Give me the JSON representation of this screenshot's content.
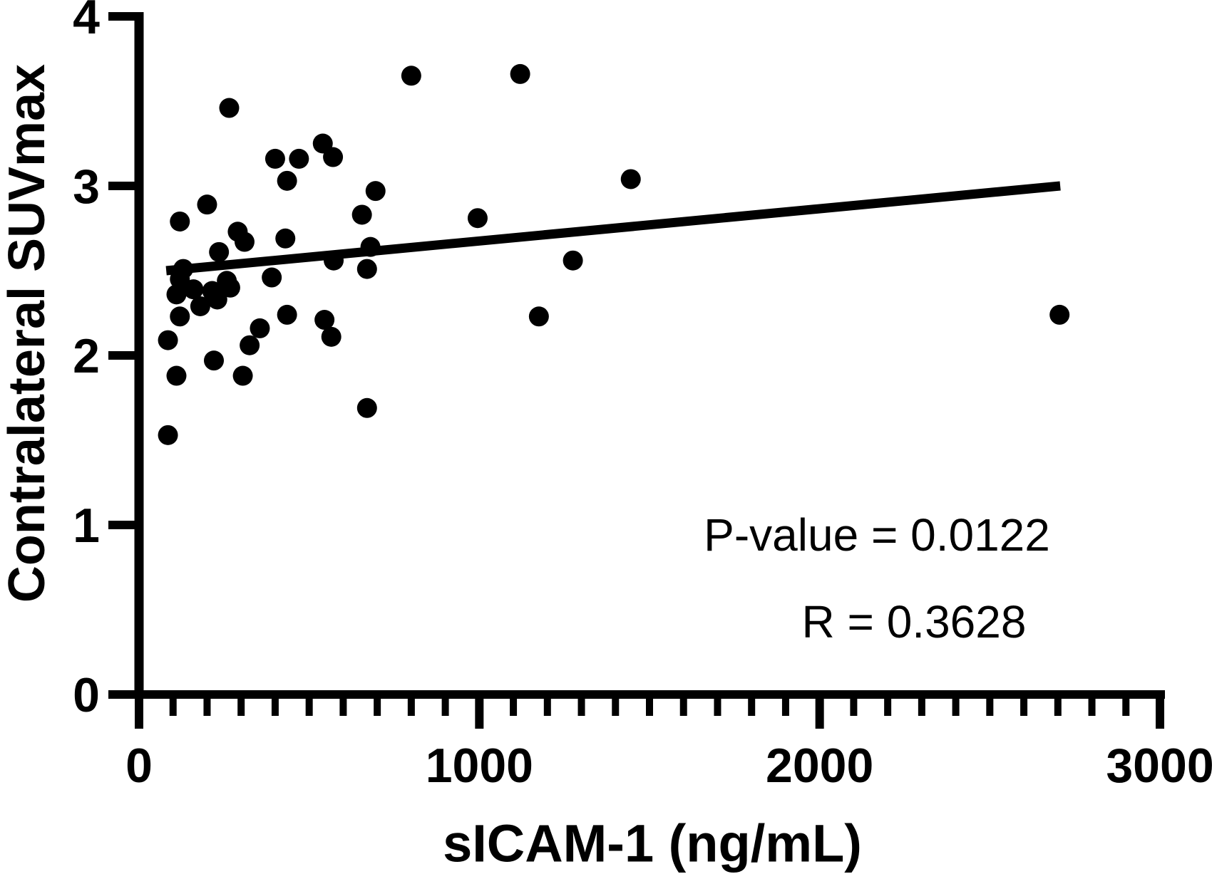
{
  "figure_title": "Scatter plot with linear regression",
  "colors": {
    "ink": "#000000",
    "background": "#ffffff"
  },
  "annotations": {
    "p_value_text": "P-value = 0.0122",
    "r_text": "R = 0.3628"
  },
  "chart_data": {
    "type": "scatter",
    "title": "",
    "xlabel": "sICAM-1 (ng/mL)",
    "ylabel": "Contralateral SUVmax",
    "xlim": [
      0,
      3000
    ],
    "ylim": [
      0,
      4
    ],
    "x_major_ticks": [
      0,
      1000,
      2000,
      3000
    ],
    "x_tick_labels": [
      "0",
      "1000",
      "2000",
      "3000"
    ],
    "x_minor_step": 100,
    "y_major_ticks": [
      0,
      1,
      2,
      3,
      4
    ],
    "y_tick_labels": [
      "0",
      "1",
      "2",
      "3",
      "4"
    ],
    "grid": false,
    "legend": "none",
    "marker": {
      "shape": "circle",
      "color": "#000000"
    },
    "points": [
      [
        800,
        3.65
      ],
      [
        1120,
        3.66
      ],
      [
        265,
        3.46
      ],
      [
        540,
        3.25
      ],
      [
        570,
        3.17
      ],
      [
        400,
        3.16
      ],
      [
        470,
        3.16
      ],
      [
        435,
        3.03
      ],
      [
        1445,
        3.04
      ],
      [
        695,
        2.97
      ],
      [
        200,
        2.89
      ],
      [
        655,
        2.83
      ],
      [
        995,
        2.81
      ],
      [
        120,
        2.79
      ],
      [
        290,
        2.73
      ],
      [
        310,
        2.67
      ],
      [
        430,
        2.69
      ],
      [
        235,
        2.61
      ],
      [
        680,
        2.64
      ],
      [
        670,
        2.51
      ],
      [
        130,
        2.51
      ],
      [
        120,
        2.45
      ],
      [
        160,
        2.39
      ],
      [
        110,
        2.36
      ],
      [
        215,
        2.38
      ],
      [
        230,
        2.33
      ],
      [
        180,
        2.29
      ],
      [
        258,
        2.44
      ],
      [
        268,
        2.4
      ],
      [
        390,
        2.46
      ],
      [
        572,
        2.56
      ],
      [
        1275,
        2.56
      ],
      [
        120,
        2.23
      ],
      [
        435,
        2.24
      ],
      [
        545,
        2.21
      ],
      [
        565,
        2.11
      ],
      [
        355,
        2.16
      ],
      [
        325,
        2.06
      ],
      [
        85,
        2.09
      ],
      [
        220,
        1.97
      ],
      [
        110,
        1.88
      ],
      [
        305,
        1.88
      ],
      [
        670,
        1.69
      ],
      [
        85,
        1.53
      ],
      [
        1175,
        2.23
      ],
      [
        2705,
        2.24
      ]
    ],
    "trendline": {
      "x1": 80,
      "y1": 2.5,
      "x2": 2707,
      "y2": 3.0
    },
    "stats": {
      "p_value": 0.0122,
      "r": 0.3628
    }
  }
}
